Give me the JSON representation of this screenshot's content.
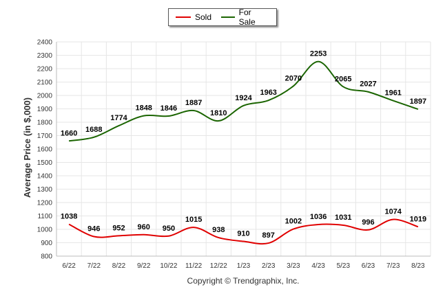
{
  "chart_data": {
    "type": "line",
    "categories": [
      "6/22",
      "7/22",
      "8/22",
      "9/22",
      "10/22",
      "11/22",
      "12/22",
      "1/23",
      "2/23",
      "3/23",
      "4/23",
      "5/23",
      "6/23",
      "7/23",
      "8/23"
    ],
    "series": [
      {
        "name": "Sold",
        "color": "#e00000",
        "values": [
          1038,
          946,
          952,
          960,
          950,
          1015,
          938,
          910,
          897,
          1002,
          1036,
          1031,
          996,
          1074,
          1019
        ]
      },
      {
        "name": "For Sale",
        "color": "#1a6400",
        "values": [
          1660,
          1688,
          1774,
          1848,
          1846,
          1887,
          1810,
          1924,
          1963,
          2070,
          2253,
          2065,
          2027,
          1961,
          1897
        ]
      }
    ],
    "ylabel": "Average Price (in $,000)",
    "ylim": [
      800,
      2400
    ],
    "ytick_step": 100,
    "grid": true,
    "legend": "top-center",
    "credit": "Copyright © Trendgraphix, Inc."
  }
}
